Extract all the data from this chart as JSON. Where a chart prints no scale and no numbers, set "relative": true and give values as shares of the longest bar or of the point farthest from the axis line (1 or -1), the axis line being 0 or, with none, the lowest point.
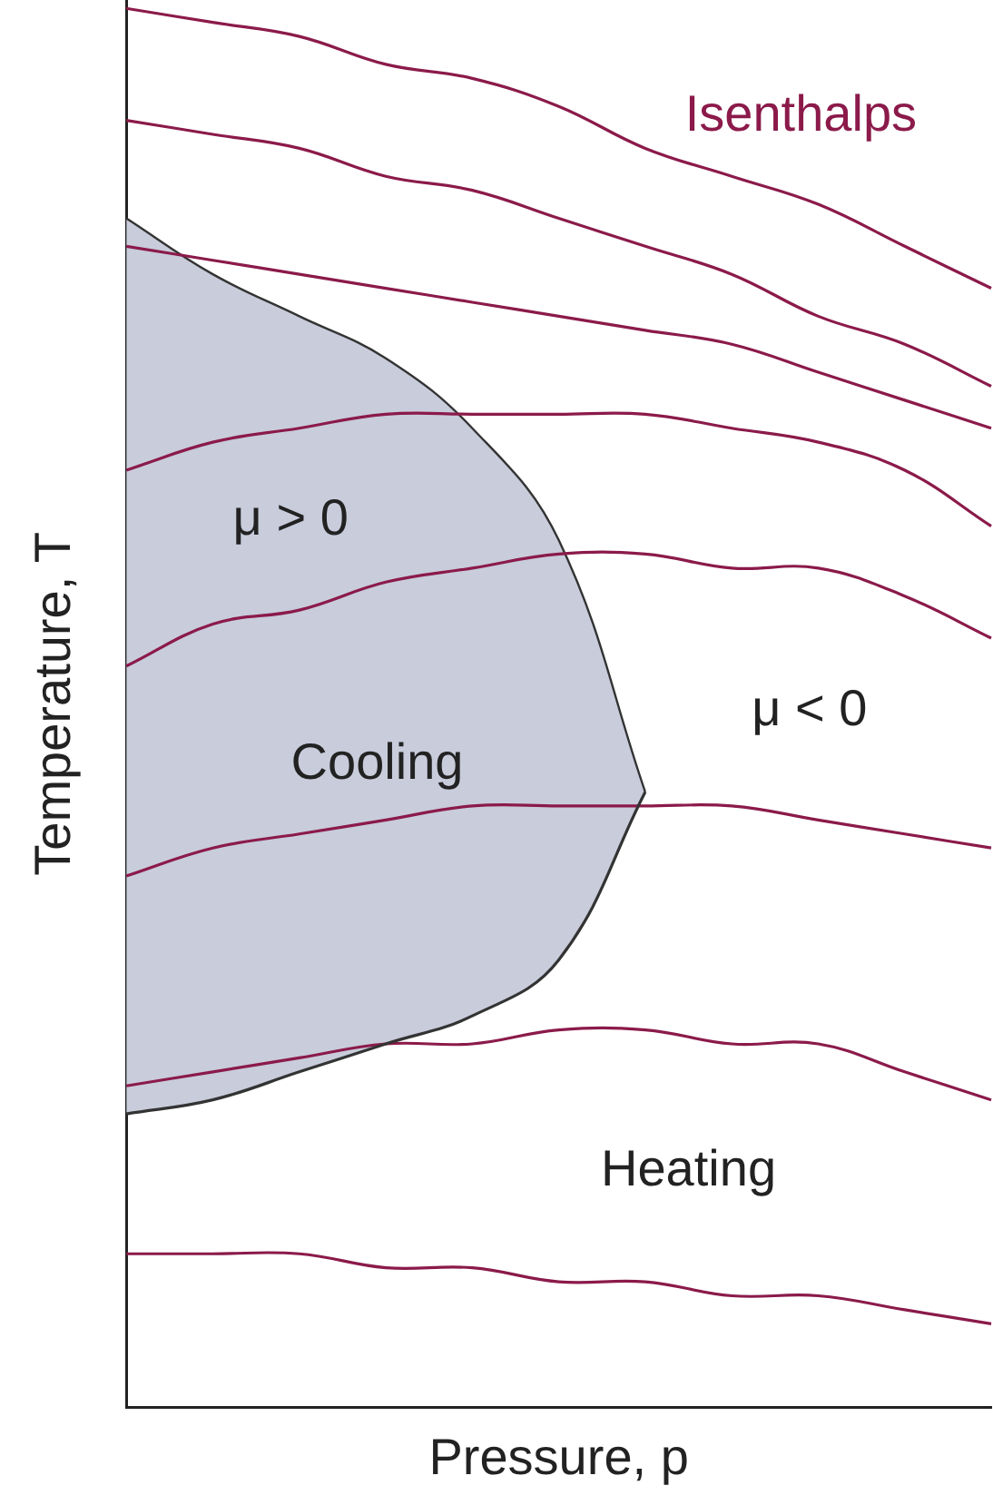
{
  "chart_data": {
    "type": "line",
    "relative": true,
    "xlabel": "Pressure, p",
    "ylabel": "Temperature, T",
    "categories": [
      null,
      null,
      null,
      null,
      null,
      null,
      null,
      null,
      null,
      null,
      null
    ],
    "series": [
      {
        "type": "area",
        "color": "#c8ccdb",
        "values": [
          0.85,
          0.81,
          0.78,
          0.75,
          0.7,
          0.62,
          0.44,
          null,
          null,
          null,
          null
        ]
      },
      {
        "color": "#333333",
        "values": [
          0.21,
          0.22,
          0.24,
          0.26,
          0.28,
          0.32,
          0.44,
          null,
          null,
          null,
          null
        ]
      },
      {
        "name": "Isenthalps",
        "color": "#8b1a4a",
        "values": [
          1,
          0.99,
          0.98,
          0.96,
          0.95,
          0.93,
          0.9,
          0.88,
          0.86,
          0.83,
          0.8
        ]
      },
      {
        "color": "#8b1a4a",
        "values": [
          0.92,
          0.91,
          0.9,
          0.88,
          0.87,
          0.85,
          0.83,
          0.81,
          0.78,
          0.76,
          0.73
        ]
      },
      {
        "color": "#8b1a4a",
        "values": [
          0.83,
          0.82,
          0.81,
          0.8,
          0.79,
          0.78,
          0.77,
          0.76,
          0.74,
          0.72,
          0.7
        ]
      },
      {
        "color": "#8b1a4a",
        "values": [
          0.67,
          0.69,
          0.7,
          0.71,
          0.71,
          0.71,
          0.71,
          0.7,
          0.69,
          0.67,
          0.63
        ]
      },
      {
        "color": "#8b1a4a",
        "values": [
          0.53,
          0.56,
          0.57,
          0.59,
          0.6,
          0.61,
          0.61,
          0.6,
          0.6,
          0.58,
          0.55
        ]
      },
      {
        "color": "#8b1a4a",
        "values": [
          0.38,
          0.4,
          0.41,
          0.42,
          0.43,
          0.43,
          0.43,
          0.43,
          0.42,
          0.41,
          0.4
        ]
      },
      {
        "color": "#8b1a4a",
        "values": [
          0.23,
          0.24,
          0.25,
          0.26,
          0.26,
          0.27,
          0.27,
          0.26,
          0.26,
          0.24,
          0.22
        ]
      },
      {
        "color": "#8b1a4a",
        "values": [
          0.11,
          0.11,
          0.11,
          0.1,
          0.1,
          0.09,
          0.09,
          0.08,
          0.08,
          0.07,
          0.06
        ]
      }
    ],
    "annotations": [
      "μ > 0",
      "μ < 0",
      "Cooling",
      "Heating"
    ]
  }
}
